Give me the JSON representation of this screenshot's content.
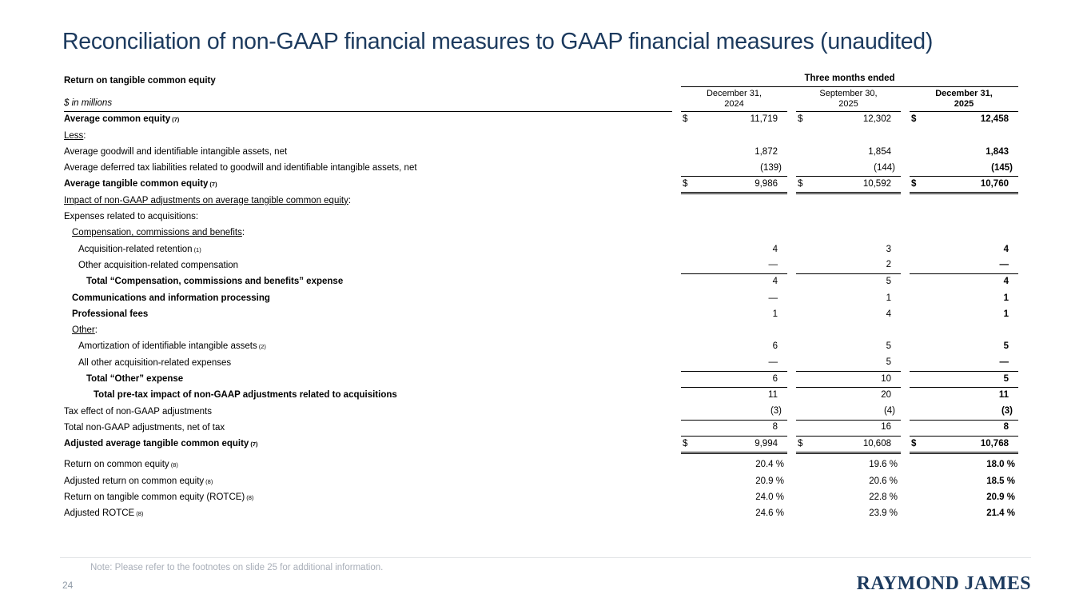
{
  "title": "Reconciliation of non-GAAP financial measures to GAAP financial measures (unaudited)",
  "colors": {
    "accent_navy": "#1c3a5e",
    "note_gray": "#a8aeb8",
    "page_number_gray": "#8f9aa6",
    "footer_divider": "#e3e5e8",
    "table_text": "#000000"
  },
  "table": {
    "section_title": "Return on tangible common equity",
    "units_label": "$ in millions",
    "period_header": "Three months ended",
    "columns": [
      {
        "line1": "December 31,",
        "line2": "2024",
        "bold": false
      },
      {
        "line1": "September 30,",
        "line2": "2025",
        "bold": false
      },
      {
        "line1": "December 31,",
        "line2": "2025",
        "bold": true
      }
    ],
    "rows": [
      {
        "label": "Average common equity",
        "sup": "(7)",
        "bold": true,
        "indent": 0,
        "dollar": true,
        "values": [
          "11,719",
          "12,302",
          "12,458"
        ],
        "rule": null
      },
      {
        "label": "Less",
        "trailing": ":",
        "underline": true,
        "indent": 0,
        "values": null,
        "rule": null
      },
      {
        "label": "Average goodwill and identifiable intangible assets, net",
        "indent": 0,
        "values": [
          "1,872",
          "1,854",
          "1,843"
        ],
        "rule": null
      },
      {
        "label": "Average deferred tax liabilities related to goodwill and identifiable intangible assets, net",
        "indent": 0,
        "values": [
          "(139)",
          "(144)",
          "(145)"
        ],
        "rule": "single"
      },
      {
        "label": "Average tangible common equity",
        "sup": "(7)",
        "bold": true,
        "indent": 0,
        "dollar": true,
        "values": [
          "9,986",
          "10,592",
          "10,760"
        ],
        "rule": "double"
      },
      {
        "label": "Impact of non-GAAP adjustments on average tangible common equity",
        "trailing": ":",
        "underline": true,
        "indent": 0,
        "values": null,
        "rule": null
      },
      {
        "label": "Expenses related to acquisitions:",
        "indent": 0,
        "values": null,
        "rule": null
      },
      {
        "label": "Compensation, commissions and benefits",
        "trailing": ":",
        "underline": true,
        "indent": 1,
        "values": null,
        "rule": null
      },
      {
        "label": "Acquisition-related retention",
        "sup": "(1)",
        "indent": 2,
        "values": [
          "4",
          "3",
          "4"
        ],
        "rule": null
      },
      {
        "label": "Other acquisition-related compensation",
        "indent": 2,
        "values": [
          "—",
          "2",
          "—"
        ],
        "rule": "single"
      },
      {
        "label": "Total “Compensation, commissions and benefits” expense",
        "bold": true,
        "indent": 3,
        "values": [
          "4",
          "5",
          "4"
        ],
        "rule": null
      },
      {
        "label": "Communications and information processing",
        "bold": true,
        "indent": 1,
        "values": [
          "—",
          "1",
          "1"
        ],
        "rule": null
      },
      {
        "label": "Professional fees",
        "bold": true,
        "indent": 1,
        "values": [
          "1",
          "4",
          "1"
        ],
        "rule": null
      },
      {
        "label": "Other",
        "trailing": ":",
        "underline": true,
        "indent": 1,
        "values": null,
        "rule": null
      },
      {
        "label": "Amortization of identifiable intangible assets",
        "sup": "(2)",
        "indent": 2,
        "values": [
          "6",
          "5",
          "5"
        ],
        "rule": null
      },
      {
        "label": "All other acquisition-related expenses",
        "indent": 2,
        "values": [
          "—",
          "5",
          "—"
        ],
        "rule": "single"
      },
      {
        "label": "Total “Other” expense",
        "bold": true,
        "indent": 3,
        "values": [
          "6",
          "10",
          "5"
        ],
        "rule": "single"
      },
      {
        "label": "Total pre-tax impact of non-GAAP adjustments related to acquisitions",
        "bold": true,
        "indent": 4,
        "values": [
          "11",
          "20",
          "11"
        ],
        "rule": null
      },
      {
        "label": "Tax effect of non-GAAP adjustments",
        "indent": 0,
        "values": [
          "(3)",
          "(4)",
          "(3)"
        ],
        "rule": "single"
      },
      {
        "label": "Total non-GAAP adjustments, net of tax",
        "indent": 0,
        "values": [
          "8",
          "16",
          "8"
        ],
        "rule": "single"
      },
      {
        "label": "Adjusted average tangible common equity",
        "sup": "(7)",
        "bold": true,
        "indent": 0,
        "dollar": true,
        "values": [
          "9,994",
          "10,608",
          "10,768"
        ],
        "rule": "double"
      },
      {
        "label": "Return on common equity",
        "sup": "(8)",
        "indent": 0,
        "gap_before": true,
        "values": [
          "20.4 %",
          "19.6 %",
          "18.0 %"
        ],
        "rule": null
      },
      {
        "label": "Adjusted return on common equity",
        "sup": "(8)",
        "indent": 0,
        "values": [
          "20.9 %",
          "20.6 %",
          "18.5 %"
        ],
        "rule": null
      },
      {
        "label": "Return on tangible common equity (ROTCE)",
        "sup": "(8)",
        "indent": 0,
        "values": [
          "24.0 %",
          "22.8 %",
          "20.9 %"
        ],
        "rule": null
      },
      {
        "label": "Adjusted ROTCE",
        "sup": "(8)",
        "indent": 0,
        "values": [
          "24.6 %",
          "23.9 %",
          "21.4 %"
        ],
        "rule": null
      }
    ]
  },
  "footer": {
    "note": "Note: Please refer to the footnotes on slide 25 for additional information.",
    "page_number": "24",
    "logo": "RAYMOND JAMES"
  }
}
